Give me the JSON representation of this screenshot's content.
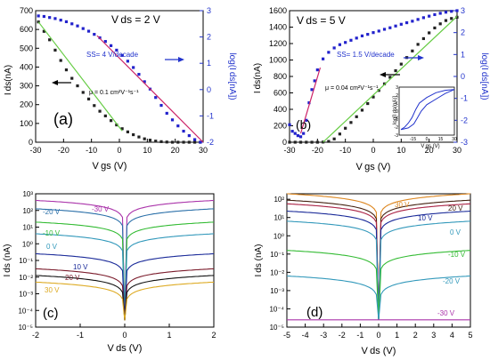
{
  "panel_a": {
    "label": "(a)",
    "vds": "V ds = 2 V",
    "ss": "SS= 4 V/decade",
    "mu": "μ = 0.1 cm²V⁻¹s⁻¹",
    "xlabel": "V gs (V)",
    "ylabel_left": "I ds(nA)",
    "ylabel_right": "log(I ds[nA])"
  },
  "panel_b": {
    "label": "(b)",
    "vds": "V ds = 5 V",
    "ss": "SS= 1.5 V/decade",
    "mu": "μ = 0.04 cm²V⁻¹s⁻¹",
    "xlabel": "V gs (V)",
    "ylabel_left": "I ds(nA)",
    "ylabel_right": "log(I ds[nA])",
    "inset_xlabel": "V gs (V)",
    "inset_ylabel": "log[I ds(nA)]"
  },
  "panel_c": {
    "label": "(c)",
    "xlabel": "V ds (V)",
    "ylabel": "I ds (nA)"
  },
  "panel_d": {
    "label": "(d)",
    "xlabel": "V ds (V)",
    "ylabel": "I ds (nA)"
  },
  "chart_data": [
    {
      "id": "a",
      "type": "scatter",
      "x_ticks": [
        "-30",
        "-20",
        "-10",
        "0",
        "10",
        "20",
        "30"
      ],
      "yL_ticks": [
        "0",
        "100",
        "200",
        "300",
        "400",
        "500",
        "600",
        "700"
      ],
      "yR_ticks": [
        "-2",
        "-1",
        "0",
        "1",
        "2",
        "3"
      ],
      "xlim": [
        -30,
        30
      ],
      "ylim_left": [
        0,
        700
      ],
      "ylim_right": [
        -2,
        3
      ],
      "series": [
        {
          "axis": "left",
          "color": "#222222",
          "style": "squares",
          "x": [
            -29,
            -27,
            -25,
            -23,
            -21,
            -19,
            -17,
            -15,
            -13,
            -11,
            -9,
            -7,
            -5,
            -3,
            -1,
            1,
            3,
            5,
            7,
            9,
            11,
            13,
            15,
            17,
            19,
            21,
            23,
            25,
            27,
            29
          ],
          "y": [
            640,
            590,
            545,
            490,
            435,
            385,
            340,
            300,
            265,
            230,
            195,
            165,
            140,
            115,
            92,
            72,
            55,
            40,
            28,
            18,
            11,
            6,
            3,
            1,
            0,
            0,
            0,
            0,
            0,
            0
          ]
        },
        {
          "axis": "right",
          "color": "#2222cc",
          "style": "squares",
          "x": [
            -29,
            -27,
            -25,
            -23,
            -21,
            -19,
            -17,
            -15,
            -13,
            -11,
            -9,
            -7,
            -5,
            -3,
            -1,
            1,
            3,
            5,
            7,
            9,
            11,
            13,
            15,
            17,
            19,
            21,
            23,
            25,
            27,
            29
          ],
          "y": [
            2.8,
            2.78,
            2.74,
            2.7,
            2.64,
            2.58,
            2.5,
            2.42,
            2.32,
            2.22,
            2.1,
            1.97,
            1.83,
            1.67,
            1.5,
            1.3,
            1.08,
            0.84,
            0.58,
            0.3,
            0.02,
            -0.3,
            -0.6,
            -0.9,
            -1.15,
            -1.38,
            -1.58,
            -1.75,
            -1.9,
            -2.0
          ]
        },
        {
          "axis": "left",
          "color": "#66cc44",
          "style": "fit",
          "x": [
            -29,
            1
          ],
          "y": [
            640,
            60
          ]
        },
        {
          "axis": "right",
          "color": "#cc2266",
          "style": "fit",
          "x": [
            -8,
            30
          ],
          "y": [
            2.05,
            -2.0
          ]
        }
      ]
    },
    {
      "id": "b",
      "type": "scatter",
      "x_ticks": [
        "-30",
        "-20",
        "-10",
        "0",
        "10",
        "20",
        "30"
      ],
      "yL_ticks": [
        "0",
        "200",
        "400",
        "600",
        "800",
        "1000",
        "1200",
        "1400",
        "1600"
      ],
      "yR_ticks": [
        "-3",
        "-2",
        "-1",
        "0",
        "1",
        "2",
        "3"
      ],
      "xlim": [
        -30,
        30
      ],
      "ylim_left": [
        0,
        1600
      ],
      "ylim_right": [
        -3,
        3
      ],
      "series": [
        {
          "axis": "left",
          "color": "#222222",
          "style": "squares",
          "x": [
            -30,
            -28,
            -26,
            -24,
            -22,
            -20,
            -18,
            -16,
            -14,
            -12,
            -10,
            -8,
            -6,
            -4,
            -2,
            0,
            2,
            4,
            6,
            8,
            10,
            12,
            14,
            16,
            18,
            20,
            22,
            24,
            26,
            28,
            30
          ],
          "y": [
            0,
            0,
            0,
            0,
            0,
            0,
            2,
            10,
            40,
            100,
            170,
            240,
            310,
            390,
            470,
            550,
            630,
            710,
            790,
            870,
            950,
            1030,
            1110,
            1190,
            1260,
            1330,
            1390,
            1440,
            1480,
            1505,
            1520
          ]
        },
        {
          "axis": "right",
          "color": "#2222cc",
          "style": "squares",
          "x": [
            -30,
            -29,
            -28,
            -27,
            -26,
            -25,
            -24,
            -23,
            -22,
            -21,
            -20,
            -18,
            -16,
            -14,
            -12,
            -10,
            -8,
            -6,
            -4,
            -2,
            0,
            2,
            4,
            6,
            8,
            10,
            12,
            14,
            16,
            18,
            20,
            22,
            24,
            26,
            28,
            30
          ],
          "y": [
            -2.2,
            -2.5,
            -2.6,
            -2.7,
            -2.75,
            -2.6,
            -2.0,
            -1.2,
            -0.6,
            -0.2,
            0.3,
            0.8,
            1.1,
            1.3,
            1.45,
            1.55,
            1.65,
            1.75,
            1.85,
            1.92,
            2.0,
            2.07,
            2.15,
            2.22,
            2.3,
            2.38,
            2.45,
            2.52,
            2.6,
            2.68,
            2.75,
            2.82,
            2.88,
            2.93,
            2.97,
            3.0
          ]
        },
        {
          "axis": "left",
          "color": "#66cc44",
          "style": "fit",
          "x": [
            -18,
            30
          ],
          "y": [
            0,
            1530
          ]
        },
        {
          "axis": "right",
          "color": "#cc2266",
          "style": "fit",
          "x": [
            -26,
            -19
          ],
          "y": [
            -2.6,
            0.4
          ]
        }
      ],
      "inset": {
        "x_ticks": [
          "-15",
          "0",
          "15",
          "30"
        ],
        "y_ticks": [
          "-3",
          "-2",
          "-1",
          "0",
          "1",
          "2",
          "3"
        ],
        "xlim": [
          -30,
          30
        ],
        "ylim": [
          -3,
          3
        ]
      }
    },
    {
      "id": "c",
      "type": "line",
      "yscale": "log",
      "x_ticks": [
        "-2",
        "-1",
        "0",
        "1",
        "2"
      ],
      "y_ticks": [
        "10⁻⁵",
        "10⁻⁴",
        "10⁻³",
        "10⁻²",
        "10⁻¹",
        "10⁰",
        "10¹",
        "10²",
        "10³"
      ],
      "xlim": [
        -2,
        2
      ],
      "ylim_log": [
        -5,
        3
      ],
      "series": [
        {
          "name": "-30 V",
          "color": "#aa33aa",
          "end_log": 2.6
        },
        {
          "name": "-20 V",
          "color": "#2a6fa8",
          "end_log": 2.1
        },
        {
          "name": "-10 V",
          "color": "#33bb33",
          "end_log": 1.3
        },
        {
          "name": "0 V",
          "color": "#3399bb",
          "end_log": 0.6
        },
        {
          "name": "10 V",
          "color": "#1a2a99",
          "end_log": -0.6
        },
        {
          "name": "20 V",
          "color": "#7a1a2a",
          "end_log": -1.5
        },
        {
          "name": "",
          "color": "#111111",
          "end_log": -1.9
        },
        {
          "name": "30 V",
          "color": "#ddaa22",
          "end_log": -2.3
        }
      ]
    },
    {
      "id": "d",
      "type": "line",
      "yscale": "log",
      "x_ticks": [
        "-5",
        "-4",
        "-3",
        "-2",
        "-1",
        "0",
        "1",
        "2",
        "3",
        "4",
        "5"
      ],
      "y_ticks": [
        "10⁻⁵",
        "10⁻⁴",
        "10⁻³",
        "10⁻²",
        "10⁻¹",
        "10⁰",
        "10¹",
        "10²"
      ],
      "xlim": [
        -5,
        5
      ],
      "ylim_log": [
        -5,
        2.3
      ],
      "series": [
        {
          "name": "30 V",
          "color": "#dd8822",
          "end_log": 2.3
        },
        {
          "name": "20 V",
          "color": "#442211",
          "end_log": 1.95
        },
        {
          "name": "",
          "color": "#aa2244",
          "end_log": 1.75
        },
        {
          "name": "10 V",
          "color": "#1a2a99",
          "end_log": 1.35
        },
        {
          "name": "0 V",
          "color": "#3399bb",
          "end_log": 0.8
        },
        {
          "name": "-10 V",
          "color": "#33bb33",
          "end_log": -0.8
        },
        {
          "name": "-20 V",
          "color": "#3399bb",
          "end_log": -2.2
        },
        {
          "name": "-30 V",
          "color": "#aa33aa",
          "end_log": -4.6
        }
      ]
    }
  ]
}
